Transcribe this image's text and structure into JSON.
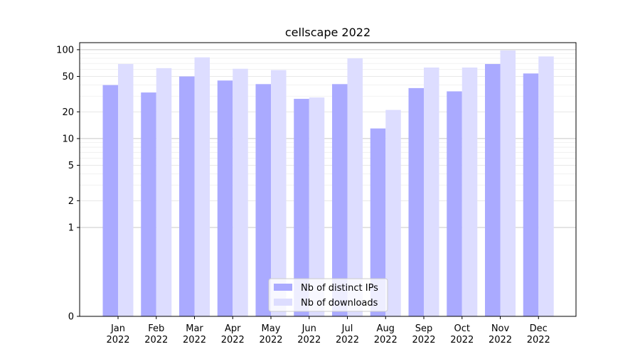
{
  "chart_data": {
    "type": "bar",
    "title": "cellscape 2022",
    "xlabel": "",
    "ylabel": "",
    "yscale": "symlog",
    "ylim": [
      0,
      120
    ],
    "ytick_values": [
      0,
      1,
      2,
      5,
      10,
      20,
      50,
      100
    ],
    "ytick_labels": [
      "0",
      "1",
      "2",
      "5",
      "10",
      "20",
      "50",
      "100"
    ],
    "grid": true,
    "legend_position": "bottom-center",
    "categories": [
      [
        "Jan",
        "2022"
      ],
      [
        "Feb",
        "2022"
      ],
      [
        "Mar",
        "2022"
      ],
      [
        "Apr",
        "2022"
      ],
      [
        "May",
        "2022"
      ],
      [
        "Jun",
        "2022"
      ],
      [
        "Jul",
        "2022"
      ],
      [
        "Aug",
        "2022"
      ],
      [
        "Sep",
        "2022"
      ],
      [
        "Oct",
        "2022"
      ],
      [
        "Nov",
        "2022"
      ],
      [
        "Dec",
        "2022"
      ]
    ],
    "series": [
      {
        "name": "Nb of distinct IPs",
        "color": "#aaaaff",
        "values": [
          40,
          33,
          50,
          45,
          41,
          28,
          41,
          13,
          37,
          34,
          69,
          54
        ]
      },
      {
        "name": "Nb of downloads",
        "color": "#ddddff",
        "values": [
          69,
          62,
          82,
          61,
          59,
          29,
          80,
          21,
          63,
          63,
          98,
          84
        ]
      }
    ]
  }
}
